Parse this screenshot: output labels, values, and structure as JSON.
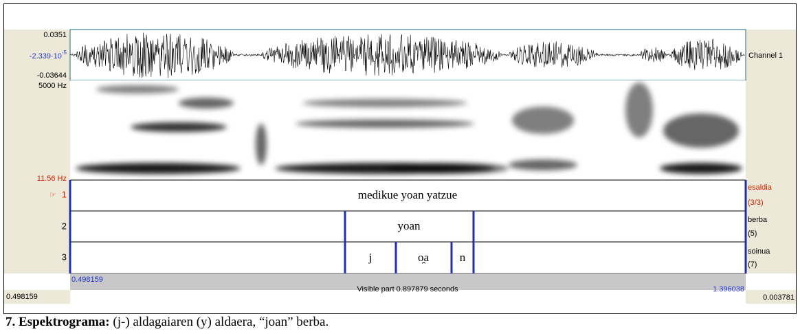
{
  "window": {
    "waveform": {
      "max": "0.0351",
      "mid_base": "-2.339·10",
      "mid_exp": "-5",
      "min": "-0.03644",
      "channel": "Channel 1"
    },
    "spectrogram": {
      "top": "5000 Hz",
      "bottom": "11.56 Hz"
    },
    "tiers": [
      {
        "number": "1",
        "pointer": "☞",
        "name": "esaldia",
        "count": "(3/3)",
        "intervals": [
          "medikue yoan yatzue"
        ]
      },
      {
        "number": "2",
        "name": "berba",
        "count": "(5)",
        "intervals": [
          "yoan"
        ]
      },
      {
        "number": "3",
        "name": "soinua",
        "count": "(7)",
        "intervals": [
          "j",
          "o̯a",
          "n"
        ]
      }
    ],
    "footer": {
      "start": "0.498159",
      "visible": "Visible part 0.897879 seconds",
      "end": "1.396038",
      "left_total": "0.498159",
      "right_total": "0.003781"
    }
  },
  "caption": {
    "bold": "7. Espektrograma:",
    "text": " (j-) aldagaiaren  (y) aldaera, “joan” berba."
  }
}
